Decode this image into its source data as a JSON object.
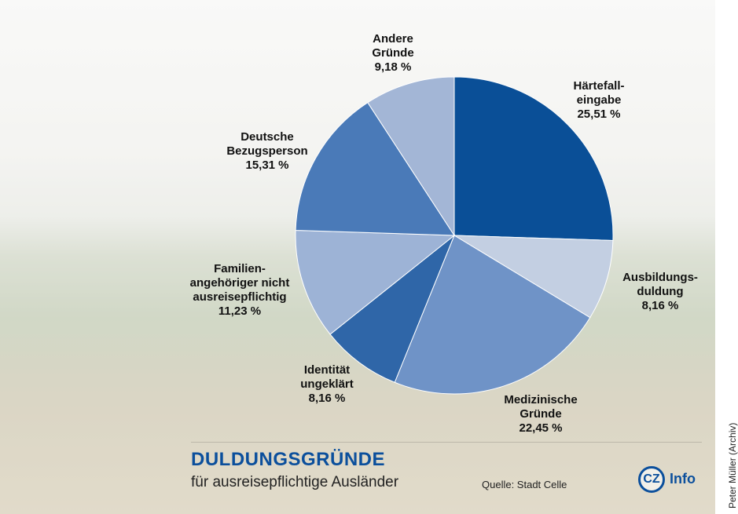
{
  "chart_data": {
    "type": "pie",
    "title": "DULDUNGSGRÜNDE",
    "subtitle": "für ausreisepflichtige Ausländer",
    "source": "Quelle: Stadt Celle",
    "logo": "CZ",
    "logo_text": "Info",
    "credit": "Peter Müller (Archiv)",
    "categories": [
      "Härtefall-\neingabe",
      "Ausbildungs-\nduldung",
      "Medizinische\nGründe",
      "Identität\nungeklärt",
      "Familien-\nangehöriger nicht\nausreisepflichtig",
      "Deutsche\nBezugsperson",
      "Andere\nGründe"
    ],
    "values": [
      25.51,
      8.16,
      22.45,
      8.16,
      11.23,
      15.31,
      9.18
    ],
    "value_labels": [
      "25,51 %",
      "8,16 %",
      "22,45 %",
      "8,16 %",
      "11,23 %",
      "15,31 %",
      "9,18 %"
    ],
    "colors": [
      "#0a4f97",
      "#c3cfe2",
      "#6f93c7",
      "#2f66a8",
      "#9db3d6",
      "#4a7ab8",
      "#a3b6d6"
    ]
  }
}
